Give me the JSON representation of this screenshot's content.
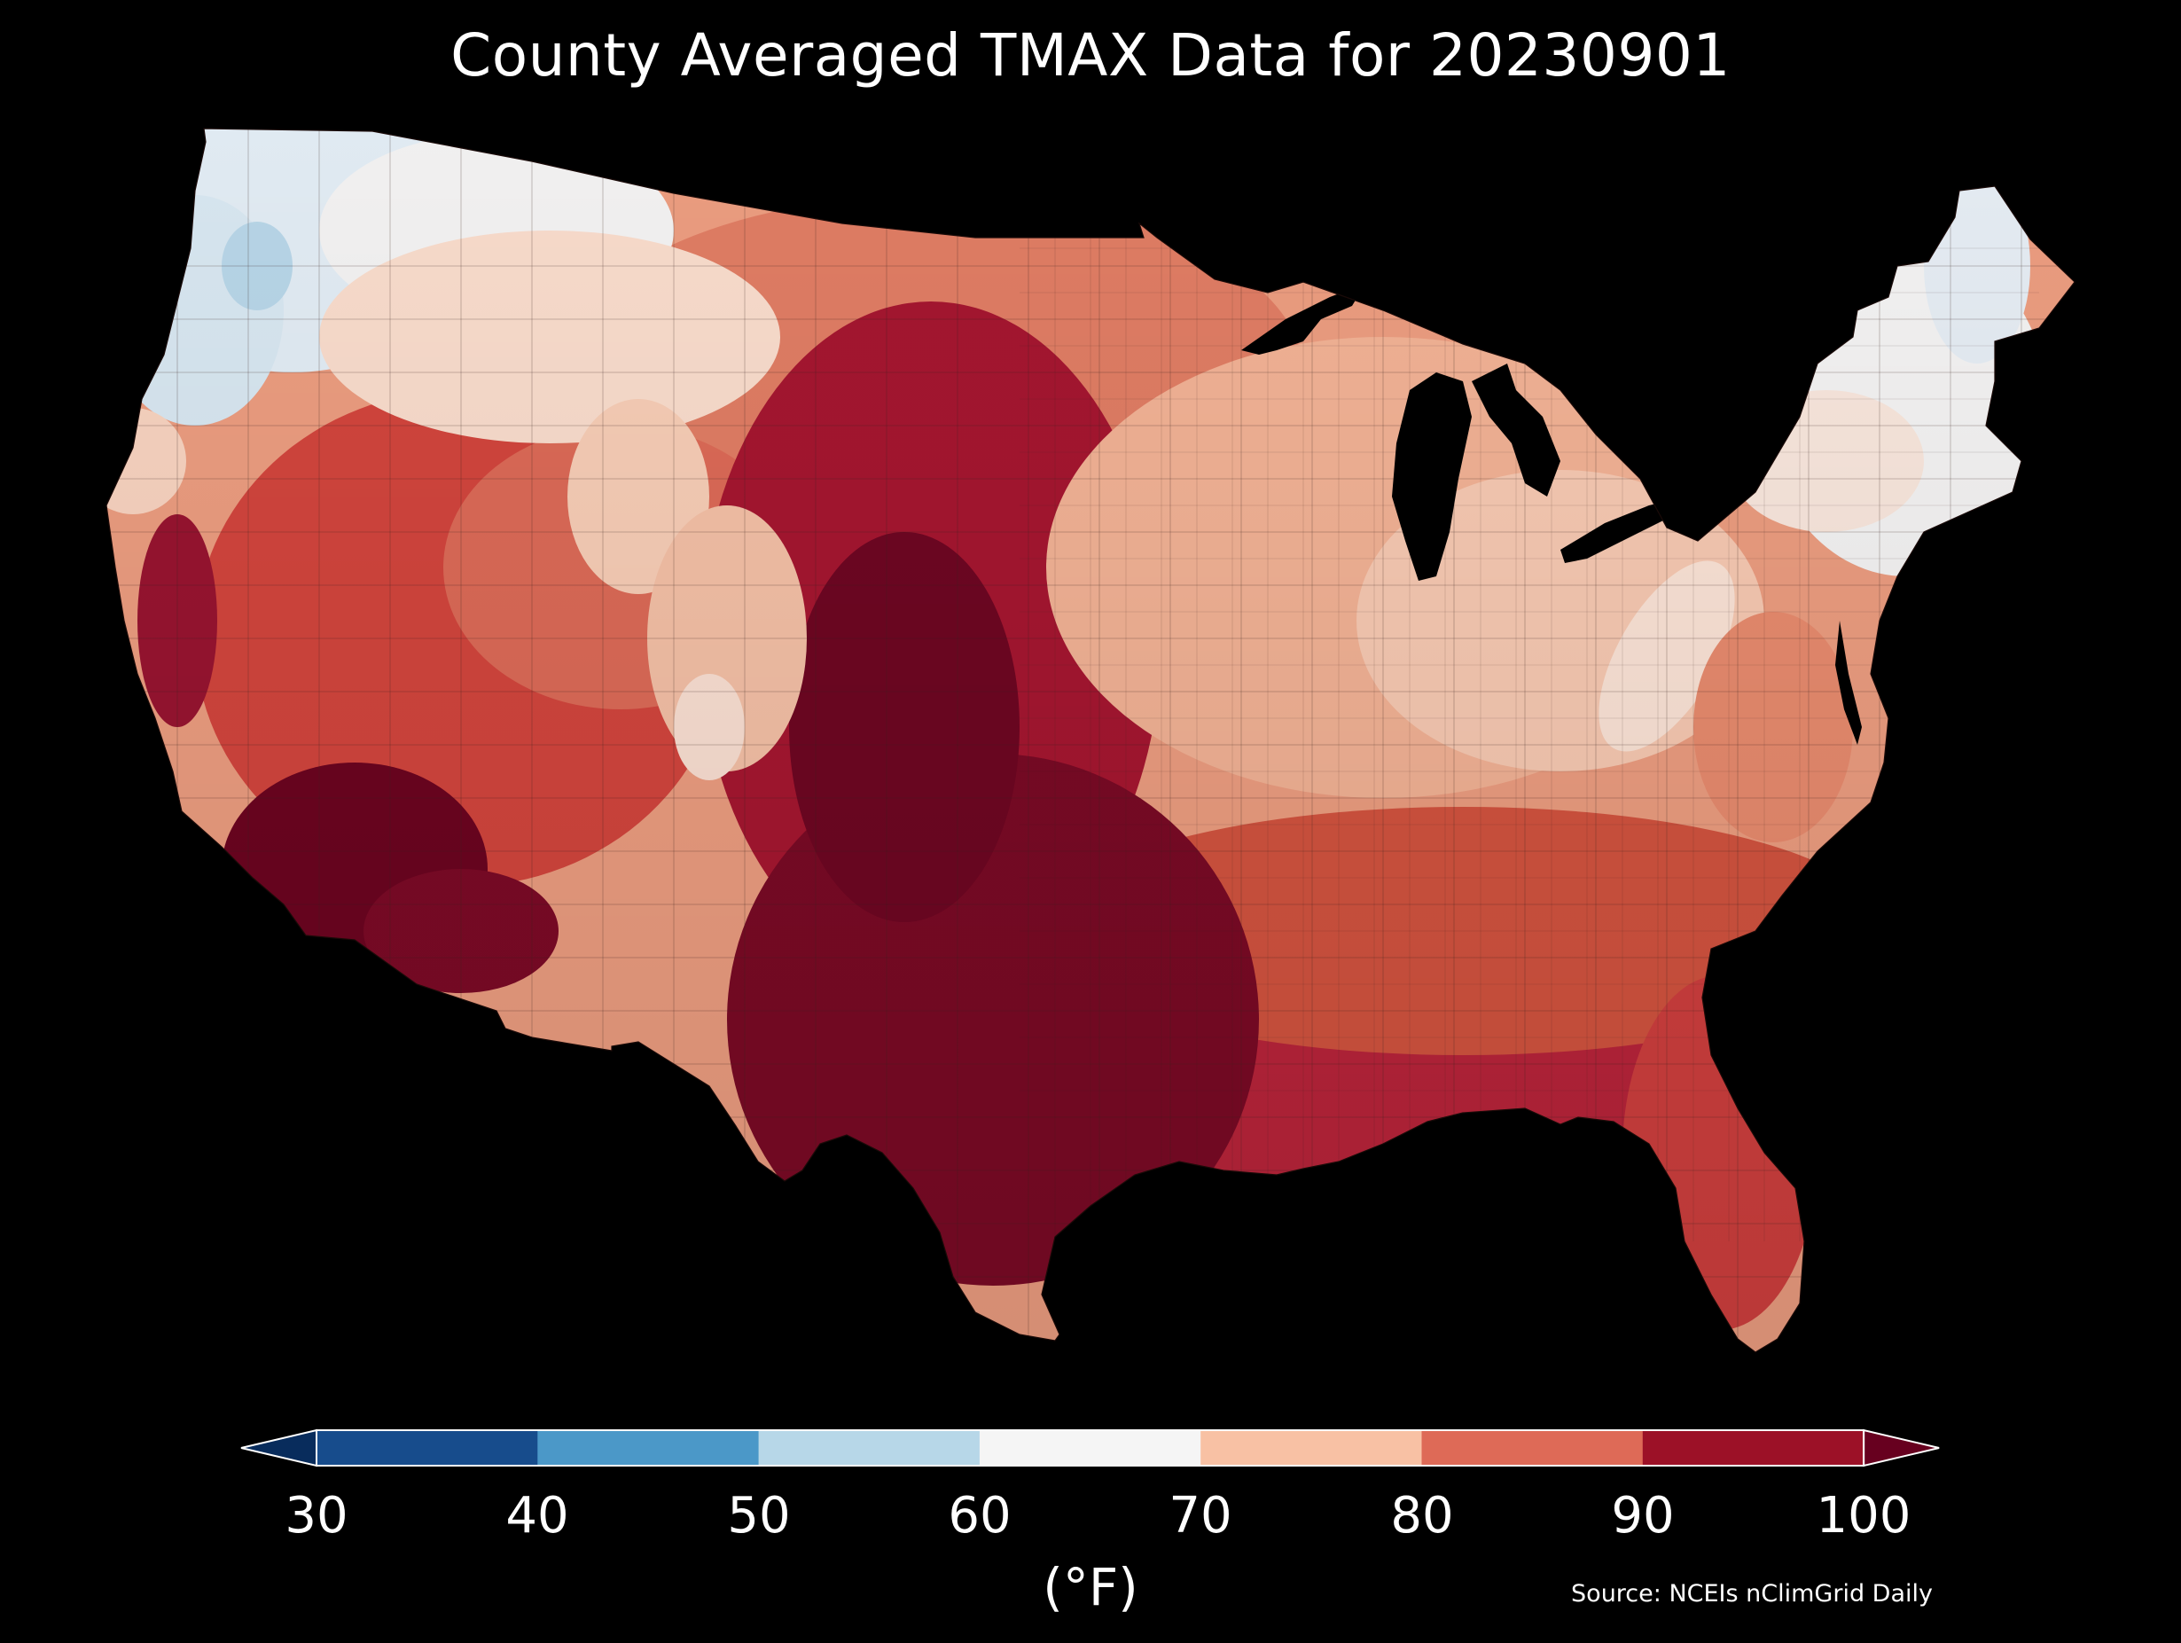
{
  "title": "County Averaged TMAX Data for 20230901",
  "colorbar": {
    "unit_label": "(°F)",
    "ticks": [
      "30",
      "40",
      "50",
      "60",
      "70",
      "80",
      "90",
      "100"
    ],
    "bin_colors": [
      "#174c8c",
      "#4b98c8",
      "#b7d7e8",
      "#f5f5f5",
      "#f8c1a4",
      "#de6a57",
      "#9c1127"
    ],
    "under_color": "#082c5c",
    "over_color": "#67001f"
  },
  "source": "Source: NCEIs nClimGrid Daily",
  "map_regions": [
    {
      "region": "Pacific Northwest coast",
      "level": "50-60"
    },
    {
      "region": "Northern Rockies",
      "level": "60-70"
    },
    {
      "region": "Northern Plains",
      "level": "80-90"
    },
    {
      "region": "Great Lakes",
      "level": "70-80"
    },
    {
      "region": "New England",
      "level": "60-70"
    },
    {
      "region": "Mid-Atlantic",
      "level": "70-80"
    },
    {
      "region": "Great Basin",
      "level": "80-90"
    },
    {
      "region": "Desert Southwest",
      "level": ">100"
    },
    {
      "region": "Southern Plains",
      "level": ">100"
    },
    {
      "region": "Texas",
      "level": ">100"
    },
    {
      "region": "Southeast",
      "level": "90-100"
    },
    {
      "region": "Florida",
      "level": "90-100"
    }
  ]
}
